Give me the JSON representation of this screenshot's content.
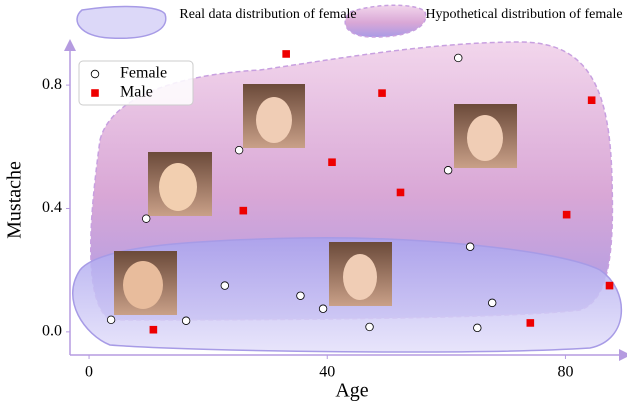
{
  "chart_data": {
    "type": "scatter",
    "x_label": "Age",
    "y_label": "Mustache",
    "annotations": [
      "Real data distribution of female",
      "Hypothetical distribution of female"
    ],
    "xlim": [
      -3.2,
      90
    ],
    "ylim": [
      -0.075,
      0.93
    ],
    "xticks": [
      0,
      40,
      80
    ],
    "yticks": [
      {
        "value": 0,
        "label": "0.0"
      },
      {
        "value": 0.4,
        "label": "0.4"
      },
      {
        "value": 0.8,
        "label": "0.8"
      }
    ],
    "legend": "upper left",
    "series": [
      {
        "name": "Female",
        "color": "#ffffff",
        "marker": "circle",
        "x": [
          3.7,
          9.6,
          16.3,
          22.8,
          25.2,
          35.5,
          39.3,
          47.1,
          60.3,
          62.0,
          64.0,
          67.7,
          65.2
        ],
        "values": [
          0.039,
          0.367,
          0.036,
          0.15,
          0.589,
          0.117,
          0.075,
          0.016,
          0.524,
          0.888,
          0.276,
          0.094,
          0.013
        ]
      },
      {
        "name": "Male",
        "color": "#ee0000",
        "marker": "square",
        "x": [
          10.8,
          25.9,
          33.1,
          40.8,
          49.2,
          52.3,
          74.1,
          80.2,
          84.4,
          87.4
        ],
        "values": [
          0.007,
          0.393,
          0.901,
          0.55,
          0.774,
          0.452,
          0.029,
          0.38,
          0.751,
          0.15
        ]
      }
    ]
  }
}
